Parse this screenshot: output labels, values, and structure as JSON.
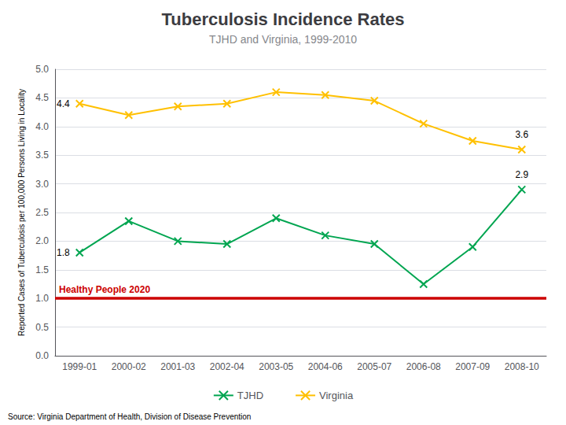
{
  "chart_data": {
    "type": "line",
    "title": "Tuberculosis Incidence Rates",
    "subtitle": "TJHD and Virginia, 1999-2010",
    "ylabel": "Reported Cases of Tuberculosis per 100,000 Persons Living in Locality",
    "source": "Source: Virginia Department of Health, Division of Disease Prevention",
    "categories": [
      "1999-01",
      "2000-02",
      "2001-03",
      "2002-04",
      "2003-05",
      "2004-06",
      "2005-07",
      "2006-08",
      "2007-09",
      "2008-10"
    ],
    "series": [
      {
        "name": "TJHD",
        "color": "#00A550",
        "marker": "x",
        "values": [
          1.8,
          2.35,
          2.0,
          1.95,
          2.4,
          2.1,
          1.95,
          1.25,
          1.9,
          2.9
        ]
      },
      {
        "name": "Virginia",
        "color": "#FFC000",
        "marker": "x",
        "values": [
          4.4,
          4.2,
          4.35,
          4.4,
          4.6,
          4.55,
          4.45,
          4.05,
          3.75,
          3.6
        ]
      }
    ],
    "reference_line": {
      "value": 1.0,
      "label": "Healthy People 2020",
      "color": "#CC0000"
    },
    "annotations": [
      {
        "text": "1.8",
        "series": "TJHD",
        "category": "1999-01"
      },
      {
        "text": "2.9",
        "series": "TJHD",
        "category": "2008-10"
      },
      {
        "text": "4.4",
        "series": "Virginia",
        "category": "1999-01"
      },
      {
        "text": "3.6",
        "series": "Virginia",
        "category": "2008-10"
      }
    ],
    "ylim": [
      0.0,
      5.0
    ],
    "yticks": [
      {
        "value": 0,
        "label": "0.0"
      },
      0.5,
      {
        "value": 1,
        "label": "1.0"
      },
      1.5,
      {
        "value": 2,
        "label": "2.0"
      },
      2.5,
      {
        "value": 3,
        "label": "3.0"
      },
      3.5,
      {
        "value": 4,
        "label": "4.0"
      },
      4.5,
      {
        "value": 5,
        "label": "5.0"
      }
    ],
    "grid": true,
    "legend": "bottom"
  }
}
